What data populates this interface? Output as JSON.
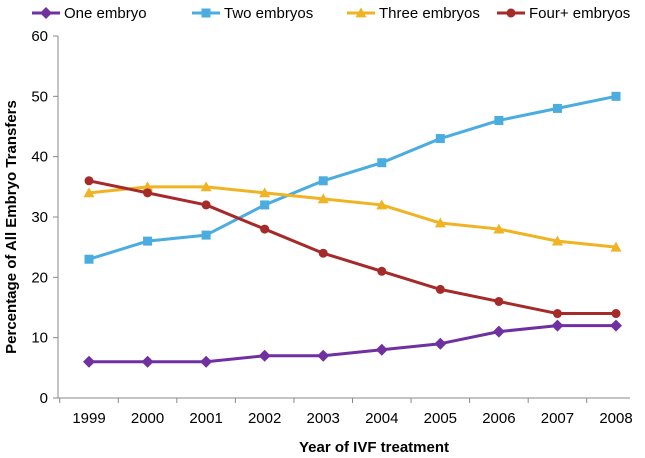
{
  "chart_data": {
    "type": "line",
    "title": "",
    "xlabel": "Year of IVF treatment",
    "ylabel": "Percentage of All Embryo Transfers",
    "x": [
      "1999",
      "2000",
      "2001",
      "2002",
      "2003",
      "2004",
      "2005",
      "2006",
      "2007",
      "2008"
    ],
    "ylim": [
      0,
      60
    ],
    "yticks": [
      0,
      10,
      20,
      30,
      40,
      50,
      60
    ],
    "grid": false,
    "legend_position": "top",
    "series": [
      {
        "name": "One embryo",
        "color": "#7030a0",
        "marker": "diamond",
        "values": [
          6,
          6,
          6,
          7,
          7,
          8,
          9,
          11,
          12,
          12
        ]
      },
      {
        "name": "Two embryos",
        "color": "#4bacdf",
        "marker": "square",
        "values": [
          23,
          26,
          27,
          32,
          36,
          39,
          43,
          46,
          48,
          50
        ]
      },
      {
        "name": "Three embryos",
        "color": "#f0b323",
        "marker": "triangle",
        "values": [
          34,
          35,
          35,
          34,
          33,
          32,
          29,
          28,
          26,
          25
        ]
      },
      {
        "name": "Four+ embryos",
        "color": "#a52a2a",
        "marker": "circle",
        "values": [
          36,
          34,
          32,
          28,
          24,
          21,
          18,
          16,
          14,
          14
        ]
      }
    ]
  }
}
